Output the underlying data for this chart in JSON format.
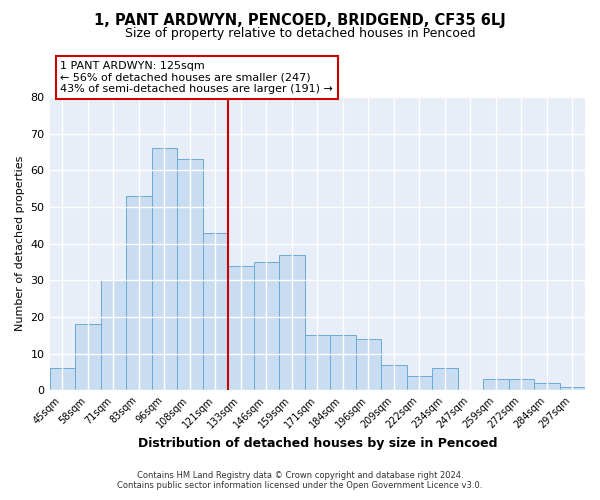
{
  "title": "1, PANT ARDWYN, PENCOED, BRIDGEND, CF35 6LJ",
  "subtitle": "Size of property relative to detached houses in Pencoed",
  "xlabel": "Distribution of detached houses by size in Pencoed",
  "ylabel": "Number of detached properties",
  "bar_labels": [
    "45sqm",
    "58sqm",
    "71sqm",
    "83sqm",
    "96sqm",
    "108sqm",
    "121sqm",
    "133sqm",
    "146sqm",
    "159sqm",
    "171sqm",
    "184sqm",
    "196sqm",
    "209sqm",
    "222sqm",
    "234sqm",
    "247sqm",
    "259sqm",
    "272sqm",
    "284sqm",
    "297sqm"
  ],
  "bar_values": [
    6,
    18,
    30,
    53,
    66,
    63,
    43,
    34,
    35,
    37,
    15,
    15,
    14,
    7,
    4,
    6,
    0,
    3,
    3,
    2,
    1
  ],
  "bar_color": "#c9ddf2",
  "bar_edge_color": "#6aaad4",
  "vline_color": "#cc0000",
  "annotation_title": "1 PANT ARDWYN: 125sqm",
  "annotation_line1": "← 56% of detached houses are smaller (247)",
  "annotation_line2": "43% of semi-detached houses are larger (191) →",
  "annotation_box_edgecolor": "#cc0000",
  "ylim": [
    0,
    80
  ],
  "yticks": [
    0,
    10,
    20,
    30,
    40,
    50,
    60,
    70,
    80
  ],
  "footer1": "Contains HM Land Registry data © Crown copyright and database right 2024.",
  "footer2": "Contains public sector information licensed under the Open Government Licence v3.0.",
  "fig_bg_color": "#ffffff",
  "plot_bg_color": "#e8eef8"
}
